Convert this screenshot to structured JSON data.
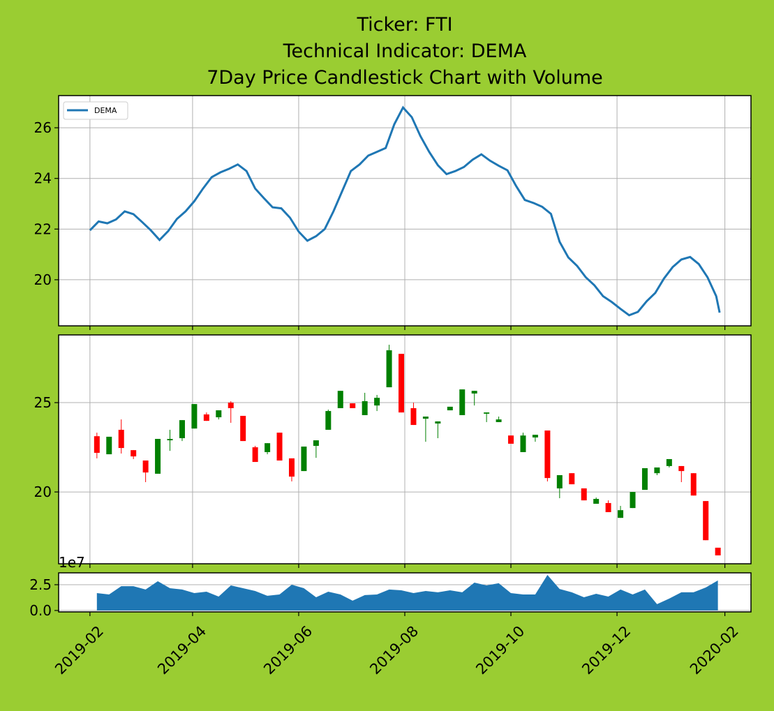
{
  "chart_data": [
    {
      "type": "line",
      "title": [
        "Ticker: FTI",
        "Technical Indicator: DEMA",
        "7Day Price Candlestick Chart with Volume"
      ],
      "legend": "upper left",
      "grid": true,
      "x": [
        "2019-02-01",
        "2019-02-06",
        "2019-02-11",
        "2019-02-16",
        "2019-02-21",
        "2019-02-26",
        "2019-03-03",
        "2019-03-08",
        "2019-03-13",
        "2019-03-18",
        "2019-03-23",
        "2019-03-28",
        "2019-04-02",
        "2019-04-07",
        "2019-04-12",
        "2019-04-17",
        "2019-04-22",
        "2019-04-27",
        "2019-05-02",
        "2019-05-07",
        "2019-05-12",
        "2019-05-17",
        "2019-05-22",
        "2019-05-27",
        "2019-06-01",
        "2019-06-06",
        "2019-06-11",
        "2019-06-16",
        "2019-06-21",
        "2019-06-26",
        "2019-07-01",
        "2019-07-06",
        "2019-07-11",
        "2019-07-16",
        "2019-07-21",
        "2019-07-26",
        "2019-07-31",
        "2019-08-05",
        "2019-08-10",
        "2019-08-15",
        "2019-08-20",
        "2019-08-25",
        "2019-08-30",
        "2019-09-04",
        "2019-09-09",
        "2019-09-14",
        "2019-09-19",
        "2019-09-24",
        "2019-09-29",
        "2019-10-04",
        "2019-10-09",
        "2019-10-14",
        "2019-10-19",
        "2019-10-24",
        "2019-10-29",
        "2019-11-03",
        "2019-11-08",
        "2019-11-13",
        "2019-11-18",
        "2019-11-23",
        "2019-11-28",
        "2019-12-03",
        "2019-12-08",
        "2019-12-13",
        "2019-12-18",
        "2019-12-23",
        "2019-12-28",
        "2020-01-02",
        "2020-01-07",
        "2020-01-12",
        "2020-01-17",
        "2020-01-22",
        "2020-01-27",
        "2020-01-29"
      ],
      "series": [
        {
          "name": "DEMA",
          "color": "#1f77b4",
          "values": [
            21.95,
            22.3,
            22.23,
            22.38,
            22.7,
            22.59,
            22.28,
            21.95,
            21.57,
            21.92,
            22.4,
            22.7,
            23.1,
            23.6,
            24.05,
            24.24,
            24.38,
            24.55,
            24.29,
            23.6,
            23.22,
            22.86,
            22.82,
            22.45,
            21.9,
            21.54,
            21.72,
            22.0,
            22.7,
            23.5,
            24.29,
            24.55,
            24.9,
            25.05,
            25.2,
            26.14,
            26.8,
            26.42,
            25.67,
            25.05,
            24.52,
            24.17,
            24.29,
            24.45,
            24.74,
            24.95,
            24.7,
            24.5,
            24.32,
            23.7,
            23.15,
            23.03,
            22.88,
            22.6,
            21.5,
            20.88,
            20.55,
            20.1,
            19.78,
            19.35,
            19.12,
            18.85,
            18.6,
            18.73,
            19.15,
            19.48,
            20.05,
            20.5,
            20.8,
            20.9,
            20.62,
            20.1,
            19.35,
            18.7
          ]
        }
      ],
      "ylim": [
        18.18,
        27.27
      ],
      "yticks": [
        20,
        22,
        24,
        26
      ]
    },
    {
      "type": "candlestick",
      "grid": true,
      "up_color": "green",
      "down_color": "red",
      "x": [
        "2019-02-05",
        "2019-02-12",
        "2019-02-19",
        "2019-02-26",
        "2019-03-05",
        "2019-03-12",
        "2019-03-19",
        "2019-03-26",
        "2019-04-02",
        "2019-04-09",
        "2019-04-16",
        "2019-04-23",
        "2019-04-30",
        "2019-05-07",
        "2019-05-14",
        "2019-05-21",
        "2019-05-28",
        "2019-06-04",
        "2019-06-11",
        "2019-06-18",
        "2019-06-25",
        "2019-07-02",
        "2019-07-09",
        "2019-07-16",
        "2019-07-23",
        "2019-07-30",
        "2019-08-06",
        "2019-08-13",
        "2019-08-20",
        "2019-08-27",
        "2019-09-03",
        "2019-09-10",
        "2019-09-17",
        "2019-09-24",
        "2019-10-01",
        "2019-10-08",
        "2019-10-15",
        "2019-10-22",
        "2019-10-29",
        "2019-11-05",
        "2019-11-12",
        "2019-11-19",
        "2019-11-26",
        "2019-12-03",
        "2019-12-10",
        "2019-12-17",
        "2019-12-24",
        "2019-12-31",
        "2020-01-07",
        "2020-01-14",
        "2020-01-21",
        "2020-01-28"
      ],
      "open": [
        23.12,
        22.11,
        23.48,
        22.34,
        21.76,
        21.02,
        22.89,
        23.01,
        23.55,
        24.34,
        24.18,
        25.0,
        24.26,
        22.5,
        22.23,
        23.32,
        21.88,
        21.17,
        22.58,
        23.48,
        24.69,
        24.96,
        24.3,
        24.84,
        25.86,
        27.73,
        24.69,
        24.1,
        23.83,
        24.57,
        24.3,
        25.51,
        24.38,
        23.91,
        23.16,
        22.23,
        23.05,
        23.44,
        20.2,
        21.05,
        20.2,
        19.34,
        19.38,
        18.55,
        19.1,
        20.12,
        21.05,
        21.45,
        21.45,
        21.05,
        19.49,
        16.88
      ],
      "high": [
        23.32,
        23.09,
        24.06,
        22.34,
        21.76,
        22.97,
        23.48,
        24.02,
        24.92,
        24.45,
        24.57,
        25.08,
        24.26,
        22.58,
        22.73,
        23.32,
        21.88,
        22.54,
        22.89,
        24.61,
        25.66,
        24.96,
        25.55,
        25.43,
        28.24,
        27.73,
        25.0,
        24.22,
        23.95,
        24.77,
        25.74,
        25.66,
        24.45,
        24.22,
        23.16,
        23.32,
        23.2,
        23.44,
        20.94,
        21.05,
        20.2,
        19.69,
        19.53,
        19.22,
        20.0,
        21.33,
        21.37,
        21.84,
        21.45,
        21.05,
        19.49,
        16.88
      ],
      "low": [
        21.88,
        22.11,
        22.15,
        21.84,
        20.55,
        21.02,
        22.3,
        22.85,
        23.55,
        23.98,
        24.06,
        23.87,
        22.85,
        21.68,
        22.11,
        21.76,
        20.59,
        21.17,
        21.91,
        23.48,
        24.69,
        24.69,
        24.3,
        24.53,
        25.86,
        24.45,
        23.75,
        22.81,
        23.01,
        24.57,
        24.3,
        24.84,
        23.91,
        23.91,
        22.7,
        22.23,
        22.81,
        20.59,
        19.65,
        20.43,
        19.53,
        19.34,
        18.87,
        18.55,
        19.1,
        20.12,
        20.94,
        21.37,
        20.55,
        19.8,
        17.3,
        16.45
      ],
      "close": [
        22.19,
        23.09,
        22.46,
        21.99,
        21.09,
        22.97,
        22.97,
        24.02,
        24.92,
        23.98,
        24.57,
        24.69,
        22.85,
        21.68,
        22.73,
        21.76,
        20.86,
        22.54,
        22.89,
        24.53,
        25.66,
        24.69,
        25.08,
        25.27,
        27.93,
        24.45,
        23.75,
        24.22,
        23.95,
        24.77,
        25.74,
        25.66,
        24.45,
        24.06,
        22.7,
        23.16,
        23.2,
        20.78,
        20.94,
        20.43,
        19.53,
        19.61,
        18.87,
        18.98,
        20.0,
        21.33,
        21.37,
        21.84,
        21.17,
        19.8,
        17.3,
        16.45
      ],
      "ylim": [
        15.98,
        28.79
      ],
      "yticks": [
        20,
        25
      ]
    },
    {
      "type": "area",
      "grid": true,
      "offset_text": "1e7",
      "x": [
        "2019-02-05",
        "2019-02-12",
        "2019-02-19",
        "2019-02-26",
        "2019-03-05",
        "2019-03-12",
        "2019-03-19",
        "2019-03-26",
        "2019-04-02",
        "2019-04-09",
        "2019-04-16",
        "2019-04-23",
        "2019-04-30",
        "2019-05-07",
        "2019-05-14",
        "2019-05-21",
        "2019-05-28",
        "2019-06-04",
        "2019-06-11",
        "2019-06-18",
        "2019-06-25",
        "2019-07-02",
        "2019-07-09",
        "2019-07-16",
        "2019-07-23",
        "2019-07-30",
        "2019-08-06",
        "2019-08-13",
        "2019-08-20",
        "2019-08-27",
        "2019-09-03",
        "2019-09-10",
        "2019-09-17",
        "2019-09-24",
        "2019-10-01",
        "2019-10-08",
        "2019-10-15",
        "2019-10-22",
        "2019-10-29",
        "2019-11-05",
        "2019-11-12",
        "2019-11-19",
        "2019-11-26",
        "2019-12-03",
        "2019-12-10",
        "2019-12-17",
        "2019-12-24",
        "2019-12-31",
        "2020-01-07",
        "2020-01-14",
        "2020-01-21",
        "2020-01-28"
      ],
      "series": [
        {
          "color": "#1f77b4",
          "values": [
            1.69,
            1.55,
            2.36,
            2.36,
            2.03,
            2.84,
            2.16,
            2.03,
            1.69,
            1.82,
            1.35,
            2.43,
            2.16,
            1.89,
            1.42,
            1.55,
            2.5,
            2.16,
            1.28,
            1.82,
            1.55,
            0.95,
            1.49,
            1.55,
            2.03,
            1.96,
            1.69,
            1.89,
            1.76,
            1.96,
            1.76,
            2.7,
            2.43,
            2.64,
            1.69,
            1.55,
            1.55,
            3.45,
            2.09,
            1.76,
            1.28,
            1.62,
            1.35,
            2.03,
            1.55,
            2.03,
            0.61,
            1.15,
            1.76,
            1.76,
            2.23,
            2.91
          ]
        }
      ],
      "ylim": [
        -0.14,
        3.65
      ],
      "yticks": [
        {
          "value": 0,
          "label": "0.0"
        },
        2.5
      ],
      "xlim": [
        "2019-01-14",
        "2020-02-16"
      ],
      "xticks": [
        "2019-02",
        "2019-04",
        "2019-06",
        "2019-08",
        "2019-10",
        "2019-12",
        "2020-02"
      ]
    }
  ]
}
